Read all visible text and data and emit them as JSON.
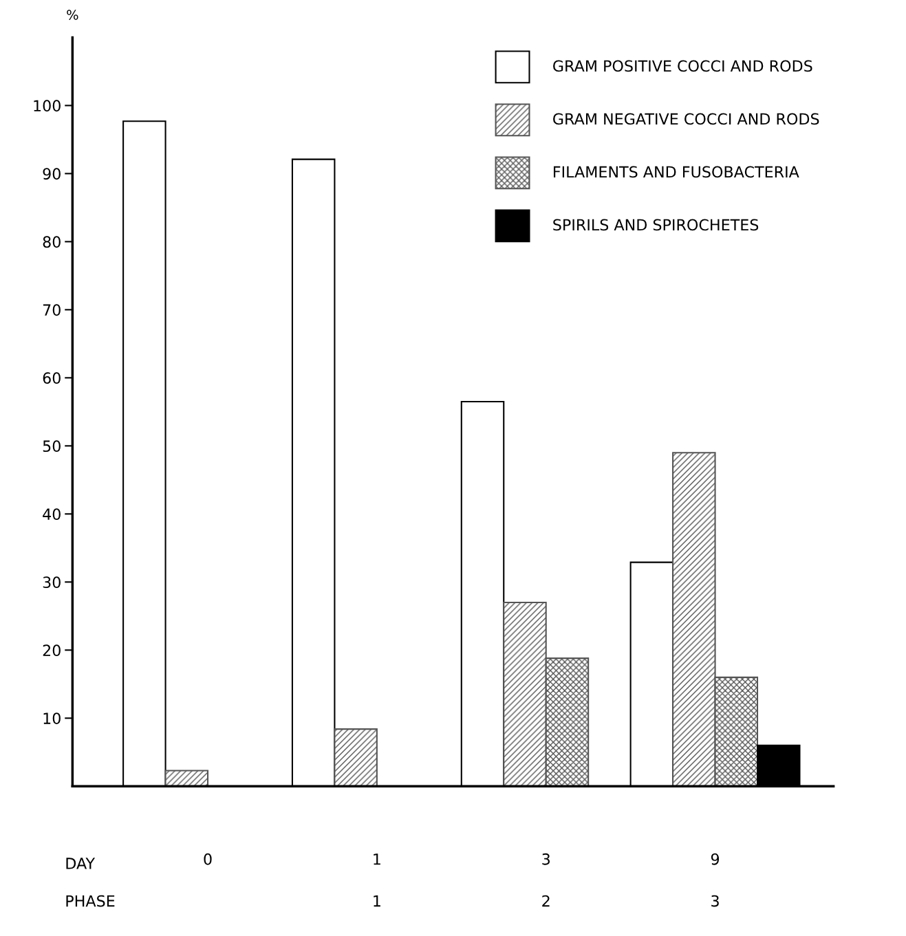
{
  "chart_data": {
    "type": "bar",
    "ylabel": "%",
    "xlabel": "DAY",
    "categories": [
      "0",
      "1",
      "3",
      "9"
    ],
    "series": [
      {
        "name": "GRAM POSITIVE COCCI AND RODS",
        "color": "#ffffff",
        "values": [
          97.7,
          92.1,
          56.5,
          32.9
        ]
      },
      {
        "name": "GRAM NEGATIVE COCCI AND RODS",
        "color": "#555555",
        "values": [
          2.3,
          8.4,
          27,
          49
        ]
      },
      {
        "name": "FILAMENTS AND FUSOBACTERIA",
        "color": "#555555",
        "values": [
          null,
          null,
          18.8,
          16
        ]
      },
      {
        "name": "SPIRILS AND SPIROCHETES",
        "color": "#000000",
        "values": [
          null,
          null,
          null,
          6
        ]
      }
    ],
    "ylim": [
      0,
      110
    ],
    "yticks": [
      10,
      20,
      30,
      40,
      50,
      60,
      70,
      80,
      90,
      100
    ],
    "grid": false,
    "legend": "top right",
    "annotations": [
      "PHASE",
      "1",
      "2",
      "3"
    ]
  }
}
